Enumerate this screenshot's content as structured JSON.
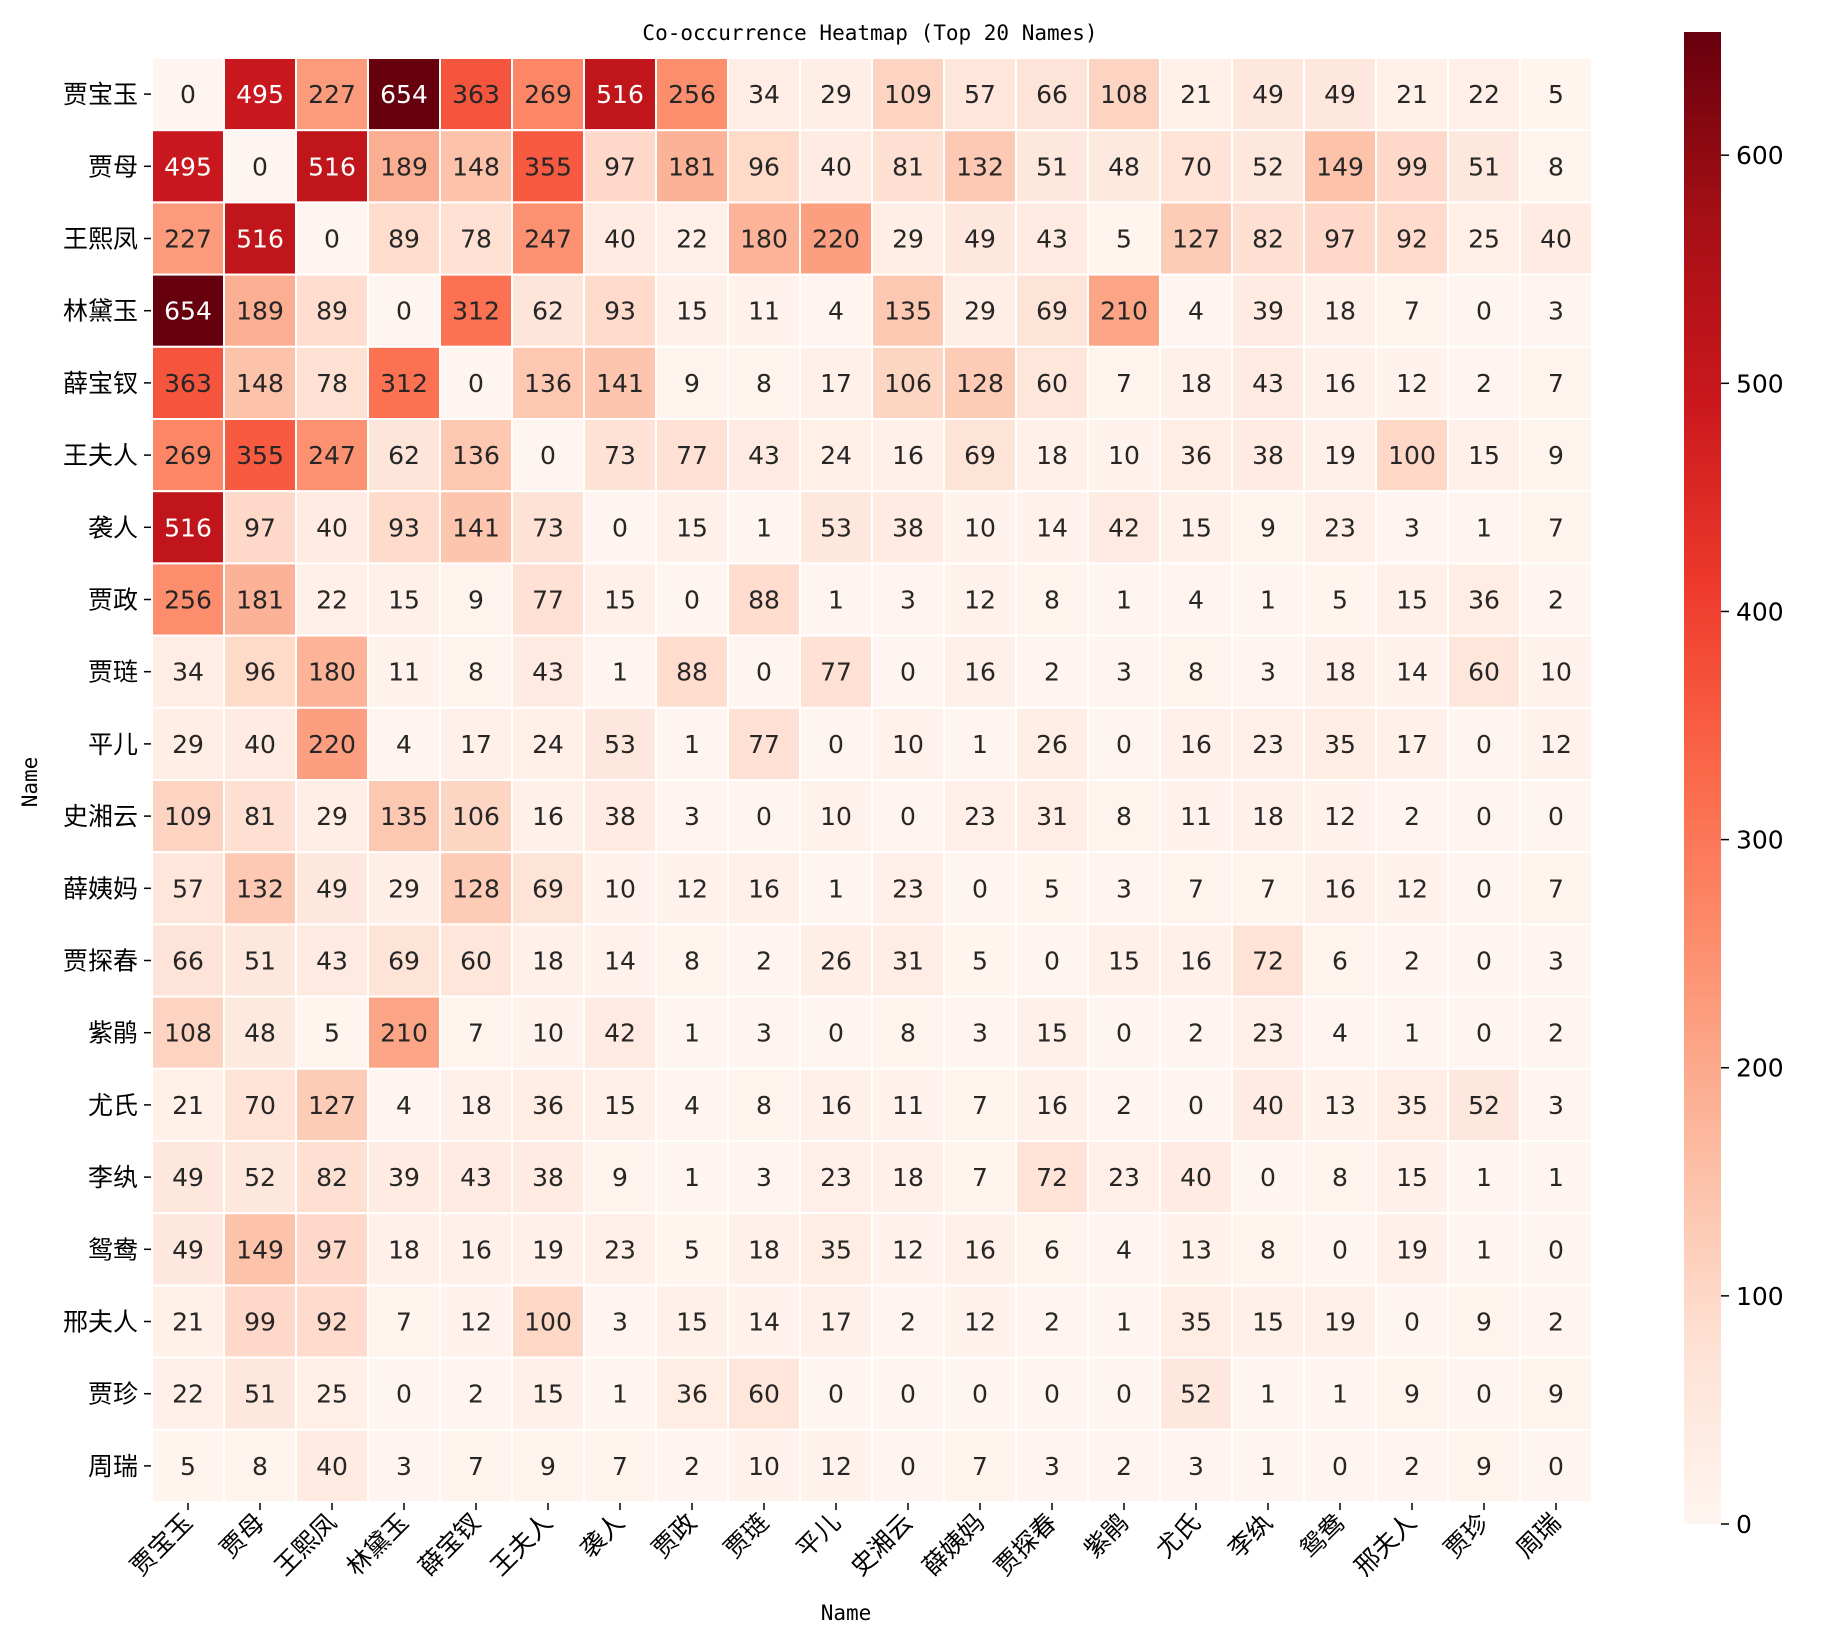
{
  "chart_data": {
    "type": "heatmap",
    "title": "Co-occurrence Heatmap (Top 20 Names)",
    "xlabel": "Name",
    "ylabel": "Name",
    "colormap": "Reds",
    "colorbar": {
      "vmin": 0,
      "vmax": 654,
      "ticks": [
        0,
        100,
        200,
        300,
        400,
        500,
        600
      ]
    },
    "categories": [
      "贾宝玉",
      "贾母",
      "王熙凤",
      "林黛玉",
      "薛宝钗",
      "王夫人",
      "袭人",
      "贾政",
      "贾琏",
      "平儿",
      "史湘云",
      "薛姨妈",
      "贾探春",
      "紫鹃",
      "尤氏",
      "李纨",
      "鸳鸯",
      "邢夫人",
      "贾珍",
      "周瑞"
    ],
    "matrix": [
      [
        0,
        495,
        227,
        654,
        363,
        269,
        516,
        256,
        34,
        29,
        109,
        57,
        66,
        108,
        21,
        49,
        49,
        21,
        22,
        5
      ],
      [
        495,
        0,
        516,
        189,
        148,
        355,
        97,
        181,
        96,
        40,
        81,
        132,
        51,
        48,
        70,
        52,
        149,
        99,
        51,
        8
      ],
      [
        227,
        516,
        0,
        89,
        78,
        247,
        40,
        22,
        180,
        220,
        29,
        49,
        43,
        5,
        127,
        82,
        97,
        92,
        25,
        40
      ],
      [
        654,
        189,
        89,
        0,
        312,
        62,
        93,
        15,
        11,
        4,
        135,
        29,
        69,
        210,
        4,
        39,
        18,
        7,
        0,
        3
      ],
      [
        363,
        148,
        78,
        312,
        0,
        136,
        141,
        9,
        8,
        17,
        106,
        128,
        60,
        7,
        18,
        43,
        16,
        12,
        2,
        7
      ],
      [
        269,
        355,
        247,
        62,
        136,
        0,
        73,
        77,
        43,
        24,
        16,
        69,
        18,
        10,
        36,
        38,
        19,
        100,
        15,
        9
      ],
      [
        516,
        97,
        40,
        93,
        141,
        73,
        0,
        15,
        1,
        53,
        38,
        10,
        14,
        42,
        15,
        9,
        23,
        3,
        1,
        7
      ],
      [
        256,
        181,
        22,
        15,
        9,
        77,
        15,
        0,
        88,
        1,
        3,
        12,
        8,
        1,
        4,
        1,
        5,
        15,
        36,
        2
      ],
      [
        34,
        96,
        180,
        11,
        8,
        43,
        1,
        88,
        0,
        77,
        0,
        16,
        2,
        3,
        8,
        3,
        18,
        14,
        60,
        10
      ],
      [
        29,
        40,
        220,
        4,
        17,
        24,
        53,
        1,
        77,
        0,
        10,
        1,
        26,
        0,
        16,
        23,
        35,
        17,
        0,
        12
      ],
      [
        109,
        81,
        29,
        135,
        106,
        16,
        38,
        3,
        0,
        10,
        0,
        23,
        31,
        8,
        11,
        18,
        12,
        2,
        0,
        0
      ],
      [
        57,
        132,
        49,
        29,
        128,
        69,
        10,
        12,
        16,
        1,
        23,
        0,
        5,
        3,
        7,
        7,
        16,
        12,
        0,
        7
      ],
      [
        66,
        51,
        43,
        69,
        60,
        18,
        14,
        8,
        2,
        26,
        31,
        5,
        0,
        15,
        16,
        72,
        6,
        2,
        0,
        3
      ],
      [
        108,
        48,
        5,
        210,
        7,
        10,
        42,
        1,
        3,
        0,
        8,
        3,
        15,
        0,
        2,
        23,
        4,
        1,
        0,
        2
      ],
      [
        21,
        70,
        127,
        4,
        18,
        36,
        15,
        4,
        8,
        16,
        11,
        7,
        16,
        2,
        0,
        40,
        13,
        35,
        52,
        3
      ],
      [
        49,
        52,
        82,
        39,
        43,
        38,
        9,
        1,
        3,
        23,
        18,
        7,
        72,
        23,
        40,
        0,
        8,
        15,
        1,
        1
      ],
      [
        49,
        149,
        97,
        18,
        16,
        19,
        23,
        5,
        18,
        35,
        12,
        16,
        6,
        4,
        13,
        8,
        0,
        19,
        1,
        0
      ],
      [
        21,
        99,
        92,
        7,
        12,
        100,
        3,
        15,
        14,
        17,
        2,
        12,
        2,
        1,
        35,
        15,
        19,
        0,
        9,
        2
      ],
      [
        22,
        51,
        25,
        0,
        2,
        15,
        1,
        36,
        60,
        0,
        0,
        0,
        0,
        0,
        52,
        1,
        1,
        9,
        0,
        9
      ],
      [
        5,
        8,
        40,
        3,
        7,
        9,
        7,
        2,
        10,
        12,
        0,
        7,
        3,
        2,
        3,
        1,
        0,
        2,
        9,
        0
      ]
    ],
    "grid": true
  }
}
